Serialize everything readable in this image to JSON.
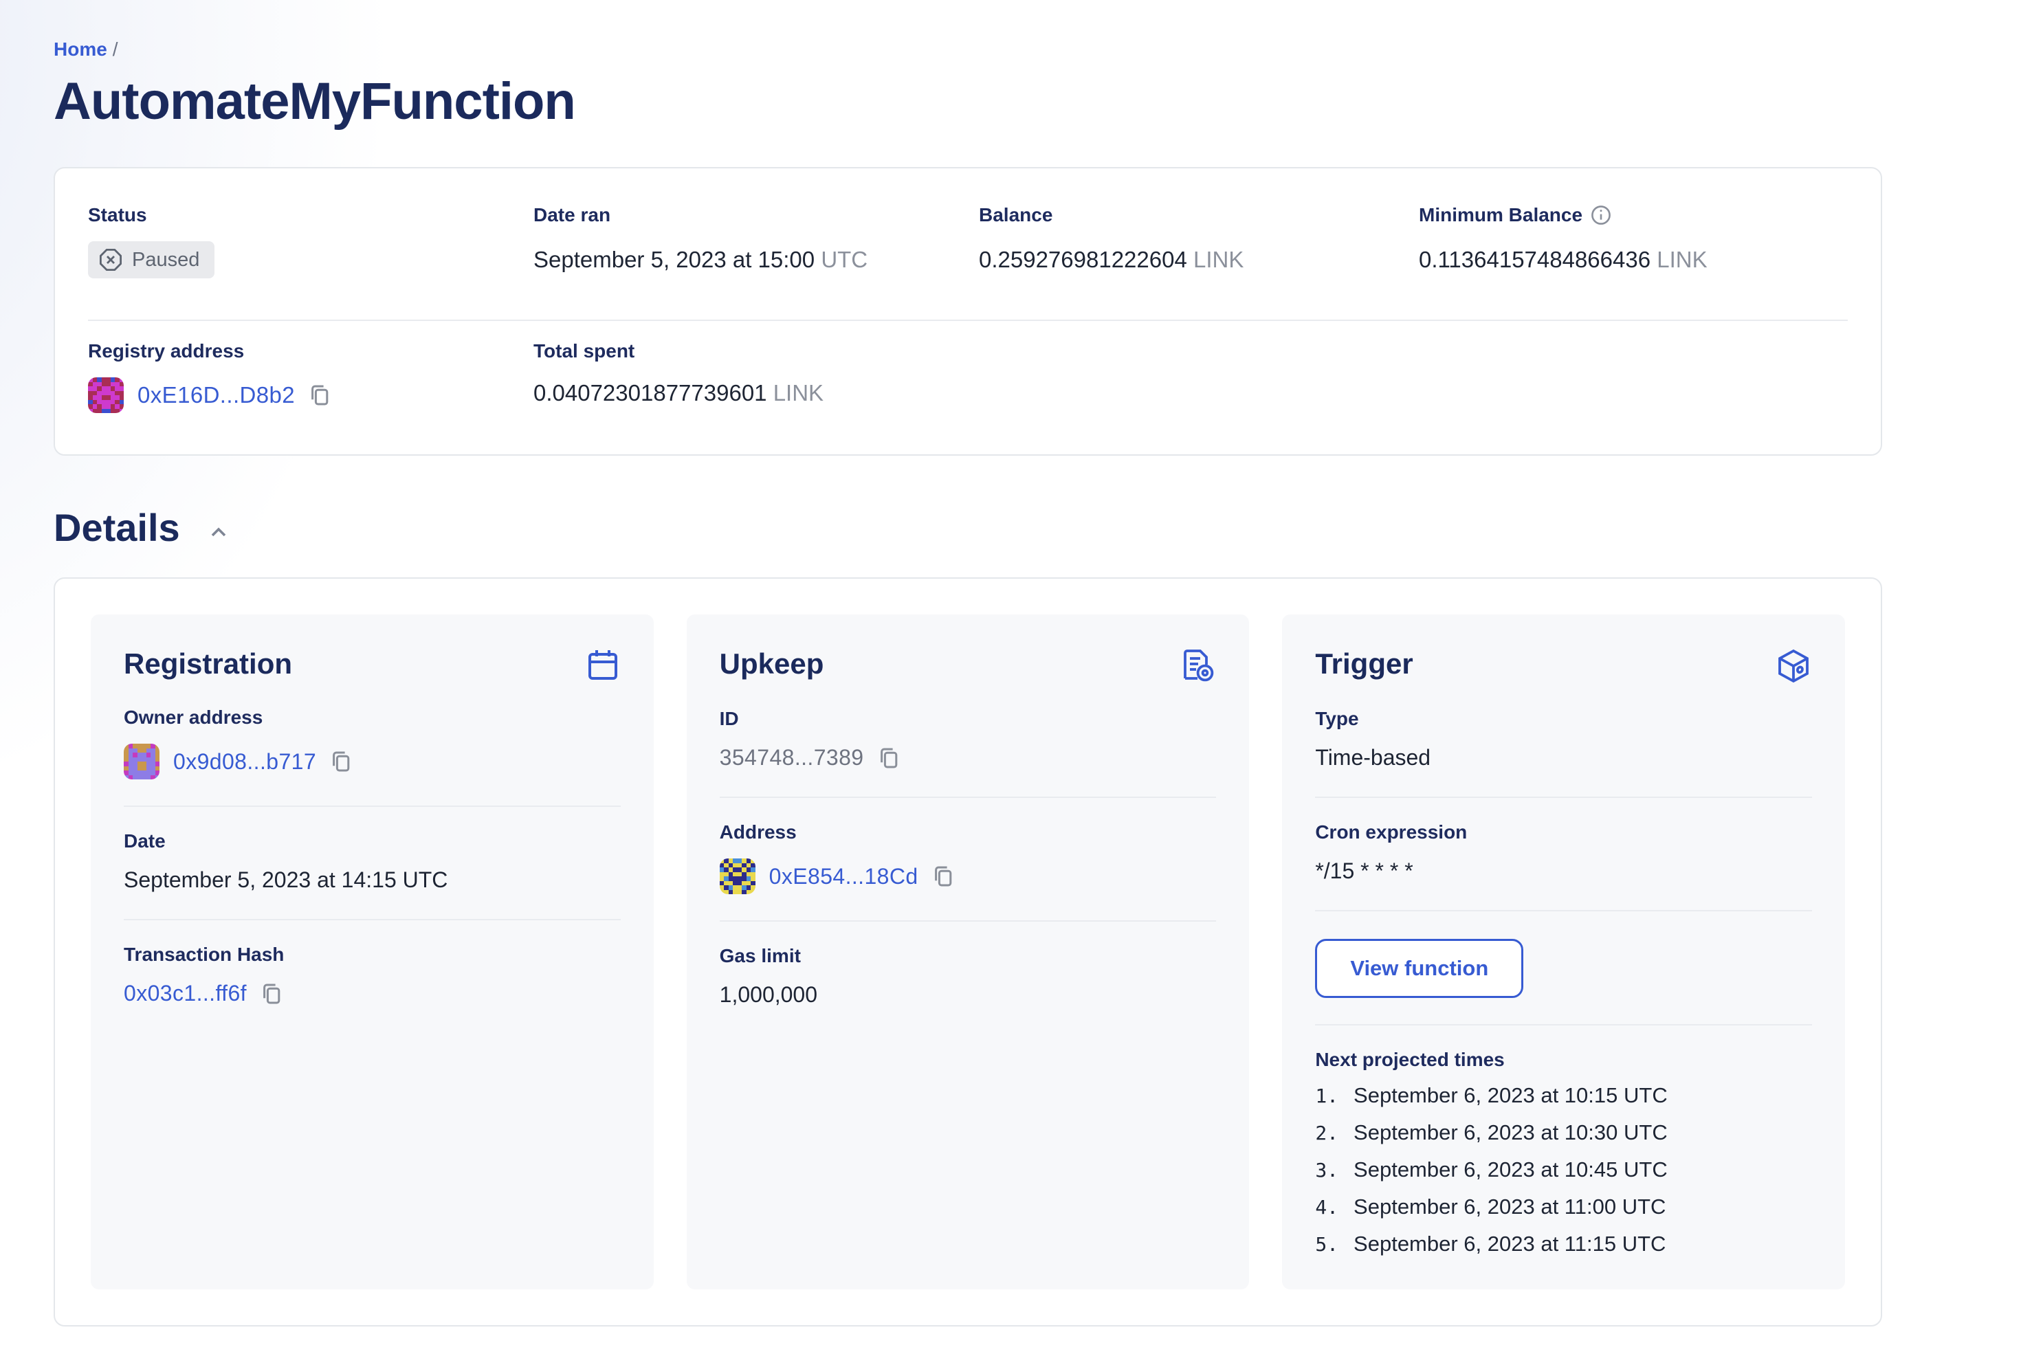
{
  "breadcrumb": {
    "home": "Home",
    "separator": "/"
  },
  "page_title": "AutomateMyFunction",
  "summary": {
    "status": {
      "label": "Status",
      "value": "Paused",
      "icon": "octagon-x-icon"
    },
    "date_ran": {
      "label": "Date ran",
      "value": "September 5, 2023 at 15:00",
      "suffix": "UTC"
    },
    "balance": {
      "label": "Balance",
      "value": "0.259276981222604",
      "unit": "LINK"
    },
    "min_balance": {
      "label": "Minimum Balance",
      "value": "0.11364157484866436",
      "unit": "LINK",
      "icon": "info-icon"
    },
    "registry": {
      "label": "Registry address",
      "value": "0xE16D...D8b2",
      "icon": "copy-icon"
    },
    "total_spent": {
      "label": "Total spent",
      "value": "0.04072301877739601",
      "unit": "LINK"
    }
  },
  "details": {
    "heading": "Details",
    "collapse_icon": "chevron-up-icon",
    "registration": {
      "title": "Registration",
      "header_icon": "calendar-icon",
      "owner": {
        "label": "Owner address",
        "value": "0x9d08...b717",
        "icon": "copy-icon"
      },
      "date": {
        "label": "Date",
        "value": "September 5, 2023 at 14:15 UTC"
      },
      "tx": {
        "label": "Transaction Hash",
        "value": "0x03c1...ff6f",
        "icon": "copy-icon"
      }
    },
    "upkeep": {
      "title": "Upkeep",
      "header_icon": "document-gear-icon",
      "id": {
        "label": "ID",
        "value": "354748...7389",
        "icon": "copy-icon"
      },
      "address": {
        "label": "Address",
        "value": "0xE854...18Cd",
        "icon": "copy-icon"
      },
      "gas": {
        "label": "Gas limit",
        "value": "1,000,000"
      }
    },
    "trigger": {
      "title": "Trigger",
      "header_icon": "cube-icon",
      "type": {
        "label": "Type",
        "value": "Time-based"
      },
      "cron": {
        "label": "Cron expression",
        "value": "*/15 * * * *"
      },
      "view_function_label": "View function",
      "projected": {
        "label": "Next projected times",
        "items": [
          "September 6, 2023 at 10:15 UTC",
          "September 6, 2023 at 10:30 UTC",
          "September 6, 2023 at 10:45 UTC",
          "September 6, 2023 at 11:00 UTC",
          "September 6, 2023 at 11:15 UTC"
        ]
      }
    }
  },
  "colors": {
    "accent_blue": "#375BD2",
    "heading_navy": "#1B2A5C",
    "body_text": "#1D2433",
    "muted_gray": "#8B909B",
    "id_gray": "#6E7380",
    "badge_bg": "#E9EAED",
    "badge_text": "#5D6470",
    "inner_card_bg": "#F7F8FA",
    "panel_border": "#E4E7EB",
    "divider": "#E9EBEF",
    "left_wash": "#E9EDF7"
  },
  "identicons": {
    "registry": {
      "palette": {
        "M": "#CE3AСD",
        "R": "#A92D55",
        "B": "#3C4FD0"
      },
      "palette_fix": {
        "M": "#CE3ACD",
        "R": "#A92D55",
        "B": "#3C4FD0"
      },
      "grid": [
        "MRBRRBRM",
        "RMMRRMMR",
        "MMRMMRMM",
        "RRMMMMRR",
        "RMMRRMMR",
        "BRMMMMRB",
        "RMRMMRMR",
        "MRRBBRRM"
      ]
    },
    "owner": {
      "palette_fix": {
        "T": "#C9974D",
        "L": "#8D7CE6",
        "M": "#C43BBF"
      },
      "grid": [
        "TMTTTTMT",
        "TLLTTLLT",
        "TLMLLMLT",
        "TLLLLLLT",
        "MLLTTLLM",
        "TLLTTLLT",
        "MLLLLLLM",
        "LMLLLLML"
      ]
    },
    "upkeep_address": {
      "palette_fix": {
        "N": "#2C2B8A",
        "Y": "#E9D94E",
        "C": "#4A8FD9"
      },
      "grid": [
        "YNYCCYNY",
        "NYNYYNYN",
        "CNYNNYNC",
        "YYNYYNYY",
        "YCNNNNCY",
        "NYYNNYYN",
        "YNCYYCNY",
        "YYNYYNYY"
      ]
    }
  }
}
